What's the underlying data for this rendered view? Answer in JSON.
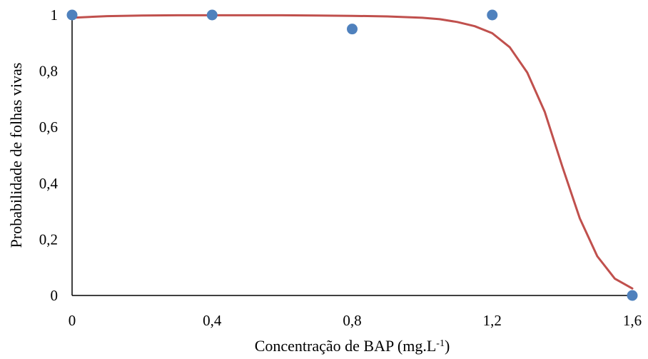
{
  "chart_data": {
    "type": "scatter",
    "xlabel": "Concentração de BAP (mg.L",
    "xlabel_superscript": "-1",
    "xlabel_suffix": ")",
    "ylabel": "Probabilidade de folhas vivas",
    "xlim": [
      0,
      1.6
    ],
    "ylim": [
      0,
      1
    ],
    "x_ticks": [
      "0",
      "0,4",
      "0,8",
      "1,2",
      "1,6"
    ],
    "y_ticks": [
      "0",
      "0,2",
      "0,4",
      "0,6",
      "0,8",
      "1"
    ],
    "grid": false,
    "legend": "none",
    "series": [
      {
        "kind": "points",
        "color": "#4F81BD",
        "x": [
          0,
          0.4,
          0.8,
          1.2,
          1.6
        ],
        "y": [
          1,
          1,
          0.95,
          1,
          0
        ]
      },
      {
        "kind": "fitted-line",
        "color": "#C0504D",
        "x": [
          0,
          0.1,
          0.2,
          0.3,
          0.4,
          0.5,
          0.6,
          0.7,
          0.8,
          0.9,
          1.0,
          1.05,
          1.1,
          1.15,
          1.2,
          1.25,
          1.3,
          1.35,
          1.4,
          1.45,
          1.5,
          1.55,
          1.6
        ],
        "y": [
          0.99,
          0.996,
          0.998,
          0.999,
          0.999,
          0.999,
          0.999,
          0.998,
          0.997,
          0.995,
          0.99,
          0.985,
          0.975,
          0.96,
          0.935,
          0.885,
          0.795,
          0.655,
          0.46,
          0.275,
          0.14,
          0.06,
          0.025
        ]
      }
    ]
  }
}
